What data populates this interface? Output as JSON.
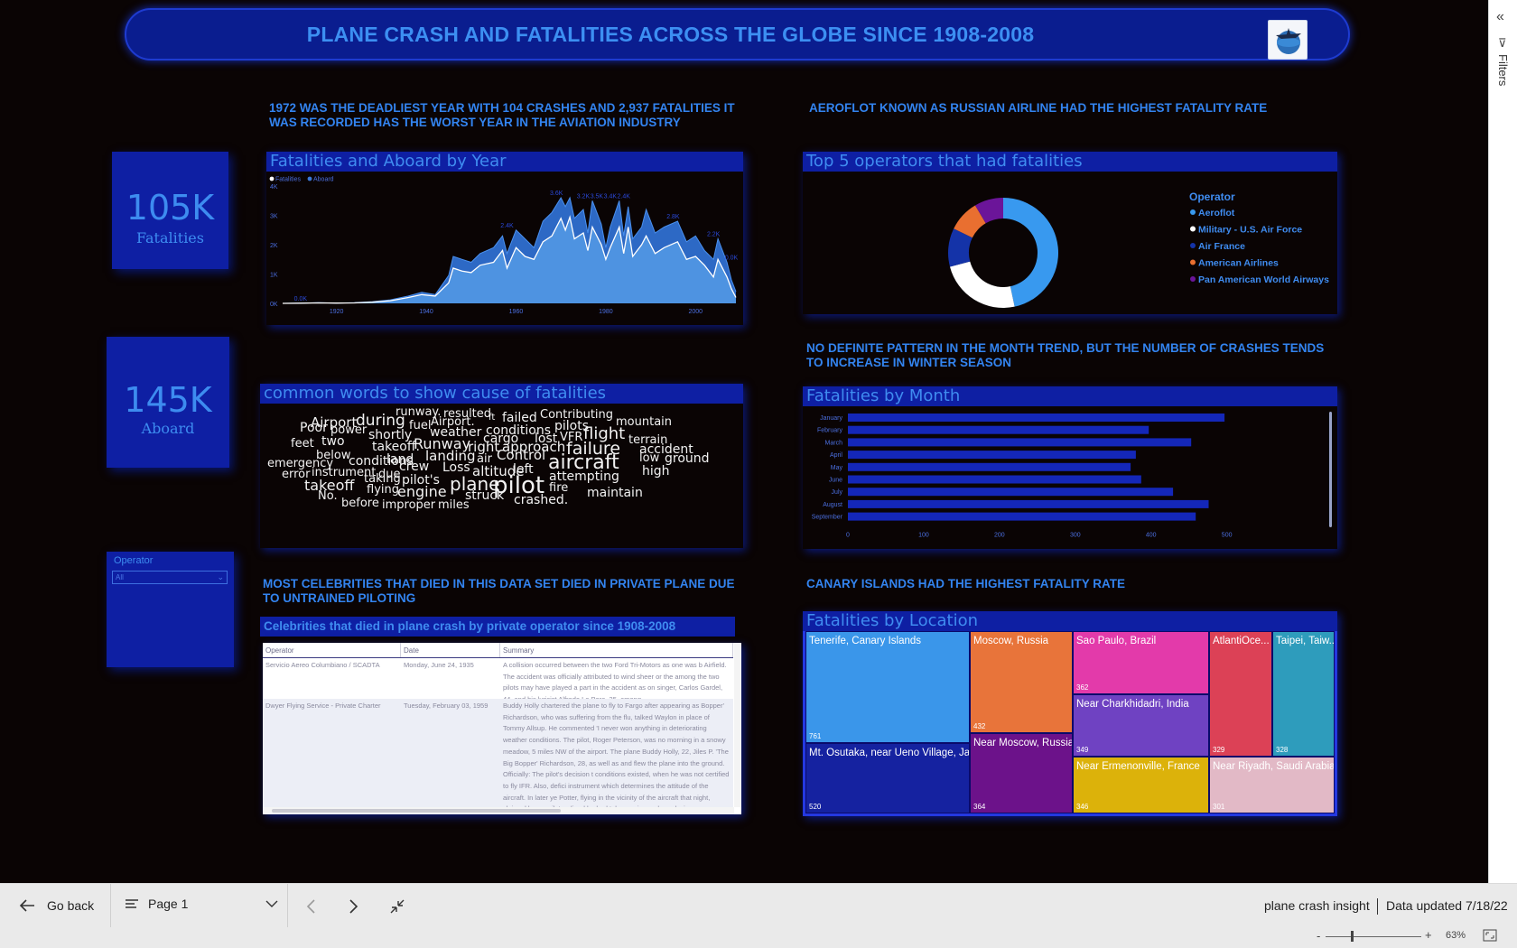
{
  "banner": {
    "title": "PLANE CRASH AND FATALITIES ACROSS THE GLOBE SINCE 1908-2008",
    "logo_icon": "globe-plane-logo"
  },
  "insights": {
    "deadliest": "1972 WAS THE DEADLIEST YEAR  WITH 104 CRASHES AND 2,937 FATALITIES IT WAS RECORDED HAS THE WORST  YEAR IN THE AVIATION INDUSTRY",
    "aeroflot": "AEROFLOT KNOWN AS RUSSIAN AIRLINE  HAD THE HIGHEST FATALITY RATE",
    "month": " NO DEFINITE PATTERN IN THE MONTH TREND, BUT THE NUMBER OF CRASHES TENDS TO INCREASE IN WINTER SEASON",
    "celebs": "MOST CELEBRITIES THAT DIED IN THIS DATA SET DIED IN PRIVATE PLANE DUE TO UNTRAINED PILOTING",
    "canary": "CANARY ISLANDS HAD THE HIGHEST FATALITY RATE"
  },
  "kpis": {
    "fatalities": {
      "value": "105K",
      "label": "Fatalities"
    },
    "aboard": {
      "value": "145K",
      "label": "Aboard"
    }
  },
  "slicer": {
    "title": "Operator",
    "value": "All"
  },
  "visuals": {
    "year_title": "Fatalities and Aboard by Year",
    "operators_title": "Top 5 operators that had fatalities",
    "words_title": "common words to show cause of fatalities",
    "month_title": "Fatalities by Month",
    "celebs_title": "Celebrities that died in plane crash by private operator since 1908-2008",
    "location_title": "Fatalities by Location"
  },
  "chart_data": [
    {
      "type": "area",
      "title": "Fatalities and Aboard by Year",
      "legend": [
        "Fatalities",
        "Aboard"
      ],
      "x_ticks": [
        "1920",
        "1940",
        "1960",
        "1980",
        "2000"
      ],
      "y_ticks": [
        "0K",
        "1K",
        "2K",
        "3K",
        "4K"
      ],
      "ylim": [
        0,
        4000
      ],
      "xlim": [
        1908,
        2009
      ],
      "series": [
        {
          "name": "Aboard",
          "color": "#3a78d8",
          "points": [
            [
              1908,
              0
            ],
            [
              1912,
              5
            ],
            [
              1916,
              20
            ],
            [
              1920,
              10
            ],
            [
              1924,
              20
            ],
            [
              1928,
              60
            ],
            [
              1932,
              120
            ],
            [
              1936,
              250
            ],
            [
              1939,
              380
            ],
            [
              1942,
              300
            ],
            [
              1945,
              950
            ],
            [
              1946,
              1600
            ],
            [
              1948,
              1500
            ],
            [
              1950,
              1400
            ],
            [
              1952,
              1700
            ],
            [
              1955,
              1900
            ],
            [
              1957,
              2300
            ],
            [
              1958,
              1700
            ],
            [
              1960,
              2500
            ],
            [
              1962,
              2200
            ],
            [
              1964,
              1900
            ],
            [
              1966,
              2800
            ],
            [
              1968,
              3100
            ],
            [
              1970,
              3600
            ],
            [
              1971,
              3300
            ],
            [
              1972,
              3600
            ],
            [
              1973,
              2900
            ],
            [
              1975,
              3200
            ],
            [
              1976,
              2400
            ],
            [
              1977,
              3500
            ],
            [
              1979,
              2700
            ],
            [
              1980,
              1900
            ],
            [
              1981,
              2600
            ],
            [
              1983,
              3500
            ],
            [
              1984,
              2300
            ],
            [
              1985,
              3300
            ],
            [
              1986,
              2200
            ],
            [
              1988,
              2600
            ],
            [
              1989,
              3200
            ],
            [
              1991,
              2400
            ],
            [
              1993,
              2600
            ],
            [
              1996,
              2800
            ],
            [
              1998,
              2100
            ],
            [
              2000,
              2300
            ],
            [
              2002,
              1800
            ],
            [
              2004,
              1500
            ],
            [
              2005,
              2200
            ],
            [
              2007,
              1400
            ],
            [
              2008,
              800
            ],
            [
              2009,
              400
            ]
          ]
        },
        {
          "name": "Fatalities",
          "color": "#ffffff",
          "points": [
            [
              1908,
              0
            ],
            [
              1912,
              5
            ],
            [
              1916,
              15
            ],
            [
              1920,
              8
            ],
            [
              1924,
              15
            ],
            [
              1928,
              40
            ],
            [
              1932,
              90
            ],
            [
              1936,
              200
            ],
            [
              1939,
              300
            ],
            [
              1942,
              250
            ],
            [
              1945,
              700
            ],
            [
              1946,
              1200
            ],
            [
              1948,
              1100
            ],
            [
              1950,
              1050
            ],
            [
              1952,
              1300
            ],
            [
              1955,
              1400
            ],
            [
              1957,
              1800
            ],
            [
              1958,
              1200
            ],
            [
              1960,
              1900
            ],
            [
              1962,
              1600
            ],
            [
              1964,
              1500
            ],
            [
              1966,
              2100
            ],
            [
              1968,
              2300
            ],
            [
              1970,
              2900
            ],
            [
              1971,
              2500
            ],
            [
              1972,
              2937
            ],
            [
              1973,
              2200
            ],
            [
              1975,
              2400
            ],
            [
              1976,
              1800
            ],
            [
              1977,
              2600
            ],
            [
              1979,
              2000
            ],
            [
              1980,
              1500
            ],
            [
              1981,
              1900
            ],
            [
              1983,
              2600
            ],
            [
              1984,
              1700
            ],
            [
              1985,
              2600
            ],
            [
              1986,
              1600
            ],
            [
              1988,
              2000
            ],
            [
              1989,
              2300
            ],
            [
              1991,
              1700
            ],
            [
              1993,
              1900
            ],
            [
              1996,
              2100
            ],
            [
              1998,
              1500
            ],
            [
              2000,
              1600
            ],
            [
              2002,
              1300
            ],
            [
              2004,
              900
            ],
            [
              2005,
              1500
            ],
            [
              2007,
              900
            ],
            [
              2008,
              500
            ],
            [
              2009,
              200
            ]
          ]
        }
      ],
      "data_labels": [
        "0.0K",
        "2.4K",
        "3.6K",
        "3.2K",
        "3.5K",
        "3.4K",
        "2.4K",
        "2.8K",
        "2.2K",
        "0.0K"
      ]
    },
    {
      "type": "pie",
      "title": "Top 5 operators that had fatalities",
      "legend_title": "Operator",
      "slices": [
        {
          "name": "Aeroflot",
          "value": 7156,
          "color": "#3899ef"
        },
        {
          "name": "Military - U.S. Air Force",
          "value": 3717,
          "color": "#ffffff"
        },
        {
          "name": "Air France",
          "value": 1734,
          "color": "#1433a8"
        },
        {
          "name": "American Airlines",
          "value": 1421,
          "color": "#e96f30"
        },
        {
          "name": "Pan American World Airways",
          "value": 1302,
          "color": "#6b1599"
        }
      ]
    },
    {
      "type": "bar",
      "title": "Fatalities by Month",
      "categories": [
        "January",
        "February",
        "March",
        "April",
        "May",
        "June",
        "July",
        "August",
        "September"
      ],
      "values": [
        497,
        397,
        453,
        380,
        373,
        387,
        429,
        476,
        459
      ],
      "xlim": [
        0,
        560
      ],
      "x_ticks": [
        "0",
        "100",
        "200",
        "300",
        "400",
        "500"
      ]
    },
    {
      "type": "heatmap",
      "title": "Fatalities by Location",
      "cells": [
        {
          "name": "Tenerife, Canary Islands",
          "value": "761",
          "color": "#3a96ea"
        },
        {
          "name": "Mt. Osutaka, near Ueno Village, Ja...",
          "value": "520",
          "color": "#1522a0"
        },
        {
          "name": "Moscow, Russia",
          "value": "432",
          "color": "#e8743a"
        },
        {
          "name": "Near Moscow, Russia",
          "value": "364",
          "color": "#6c128a"
        },
        {
          "name": "Sao Paulo, Brazil",
          "value": "362",
          "color": "#e33aaa"
        },
        {
          "name": "Near Charkhidadri, India",
          "value": "349",
          "color": "#6f42c2"
        },
        {
          "name": "Near Ermenonville, France",
          "value": "346",
          "color": "#dcb20a"
        },
        {
          "name": "AtlantiOce...",
          "value": "329",
          "color": "#dc4156"
        },
        {
          "name": "Taipei, Taiw...",
          "value": "328",
          "color": "#2e9cbc"
        },
        {
          "name": "Near Riyadh, Saudi Arabia",
          "value": "301",
          "color": "#e2b9c6"
        }
      ]
    }
  ],
  "words": [
    "runway.",
    "resulted",
    "Airport",
    "during",
    "fuel",
    "Airport.",
    "ft",
    "failed",
    "Contributing",
    "mountain",
    "Poor",
    "power",
    "conditions",
    "pilots",
    "shortly",
    "weather",
    "flight",
    "feet",
    "two",
    "cargo",
    "lost",
    "VFR",
    "terrain",
    "takeoff.",
    "Runway",
    "right",
    "approach",
    "failure",
    "accident",
    "below",
    "land",
    "landing",
    "air",
    "Control",
    "low",
    "ground",
    "emergency",
    "conditions",
    "crew",
    "Loss",
    "aircraft",
    "instrument",
    "due",
    "altitude",
    "left",
    "high",
    "error",
    "taking",
    "pilot's",
    "attempting",
    "takeoff",
    "plane",
    "pilot",
    "flying",
    "engine",
    "fire",
    "No.",
    "struck",
    "maintain",
    "before",
    "improper",
    "miles",
    "crashed."
  ],
  "table": {
    "headers": [
      "Operator",
      "Date",
      "Summary"
    ],
    "rows": [
      {
        "operator": "Servicio Aereo Columbiano / SCADTA",
        "date": "Monday, June 24, 1935",
        "summary": "A collision occurred between the two Ford Tri-Motors as one was b Airfield. The accident was officially attributed to wind sheer or the among the two pilots may have played a part in the accident as on singer, Carlos Gardel, 44, and his lyricist Alfredo Le Pera, 35, among"
      },
      {
        "operator": "Dwyer Flying Service - Private Charter",
        "date": "Tuesday, February 03, 1959",
        "summary": "Buddy Holly chartered the plane to fly to Fargo after appearing as Bopper' Richardson, who was suffering from the flu, talked Waylon in place of Tommy Allsup. He commented 'I never won anything in deteriorating weather conditions. The pilot, Roger Peterson, was no morning in a snowy meadow, 5 miles NW of the airport. The plane Buddy Holly, 22, Jiles P. 'The Big Bopper' Richardson, 28, as well as and flew the plane into the ground. Officially: The pilot's decision t conditions existed, when he was not certified to fly IFR. Also, defici instrument which determines the attitude of the aircraft. In later ye Potter, flying in the vicinity of the aircraft that night, claimed he wa pilot radioed he had taken on ice and was losing power."
      }
    ]
  },
  "bottom": {
    "go_back": "Go back",
    "page": "Page 1",
    "report_name": "plane crash insight",
    "updated": "Data updated 7/18/22",
    "zoom": "63%",
    "minus": "-",
    "plus": "+"
  },
  "filters": {
    "label": "Filters"
  }
}
